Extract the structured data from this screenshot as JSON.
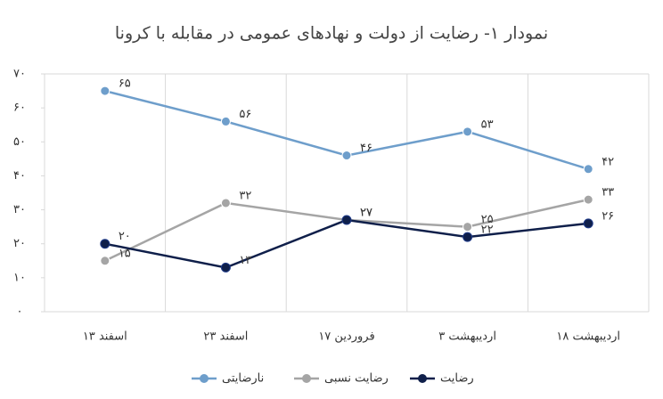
{
  "chart_data": {
    "type": "line",
    "title": "نمودار ۱- رضایت از دولت و نهادهای عمومی در مقابله با کرونا",
    "categories": [
      "۱۳ اسفند",
      "۲۳ اسفند",
      "۱۷ فروردین",
      "۳ اردیبهشت",
      "۱۸ اردیبهشت"
    ],
    "series": [
      {
        "name": "نارضایتی",
        "color": "#6e9ecb",
        "values": [
          65,
          56,
          46,
          53,
          42
        ],
        "value_labels": [
          "۶۵",
          "۵۶",
          "۴۶",
          "۵۳",
          "۴۲"
        ]
      },
      {
        "name": "رضایت نسبی",
        "color": "#a5a5a5",
        "values": [
          15,
          32,
          27,
          25,
          33
        ],
        "value_labels": [
          "۱۵",
          "۳۲",
          "۲۷",
          "۲۵",
          "۳۳"
        ]
      },
      {
        "name": "رضایت",
        "color": "#0f1f4a",
        "values": [
          20,
          13,
          27,
          22,
          26
        ],
        "value_labels": [
          "۲۰",
          "۱۳",
          "۲۷",
          "۲۲",
          "۲۶"
        ]
      }
    ],
    "ylim": [
      0,
      70
    ],
    "yticks": [
      {
        "value": 0,
        "label": "۰"
      },
      {
        "value": 10,
        "label": "۱۰"
      },
      {
        "value": 20,
        "label": "۲۰"
      },
      {
        "value": 30,
        "label": "۳۰"
      },
      {
        "value": 40,
        "label": "۴۰"
      },
      {
        "value": 50,
        "label": "۵۰"
      },
      {
        "value": 60,
        "label": "۶۰"
      },
      {
        "value": 70,
        "label": "۷۰"
      }
    ],
    "legend": "bottom"
  }
}
